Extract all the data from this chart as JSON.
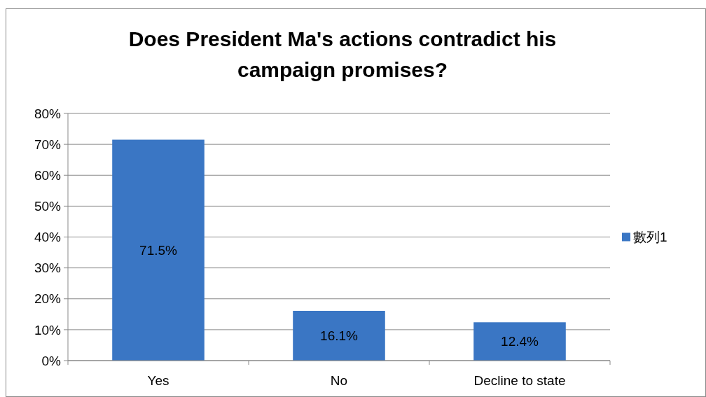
{
  "chart_data": {
    "type": "bar",
    "title": "Does President Ma's actions contradict his campaign promises?",
    "categories": [
      "Yes",
      "No",
      "Decline to state"
    ],
    "series": [
      {
        "name": "數列1",
        "color": "#3a76c4",
        "values": [
          71.5,
          16.1,
          12.4
        ]
      }
    ],
    "value_labels": [
      "71.5%",
      "16.1%",
      "12.4%"
    ],
    "ylim": [
      0,
      80
    ],
    "yticks": [
      {
        "value": 0,
        "label": "0%"
      },
      {
        "value": 10,
        "label": "10%"
      },
      {
        "value": 20,
        "label": "20%"
      },
      {
        "value": 30,
        "label": "30%"
      },
      {
        "value": 40,
        "label": "40%"
      },
      {
        "value": 50,
        "label": "50%"
      },
      {
        "value": 60,
        "label": "60%"
      },
      {
        "value": 70,
        "label": "70%"
      },
      {
        "value": 80,
        "label": "80%"
      }
    ],
    "grid": "y",
    "legend": "right"
  }
}
